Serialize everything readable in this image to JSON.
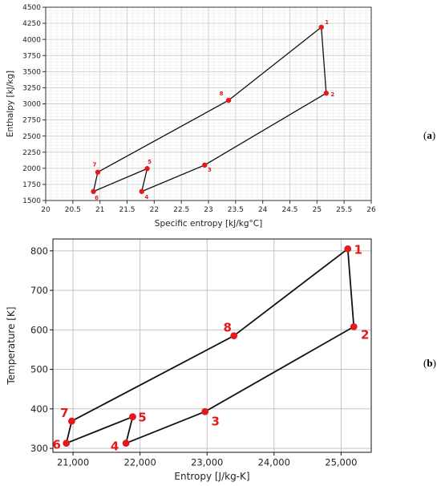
{
  "panels": [
    {
      "tag_open": "(",
      "tag_letter": "a",
      "tag_close": ")"
    },
    {
      "tag_open": "(",
      "tag_letter": "b",
      "tag_close": ")"
    }
  ],
  "chart_data": [
    {
      "type": "line",
      "title": "",
      "xlabel": "Specific entropy [kJ/kg°C]",
      "ylabel": "Enthalpy [kJ/kg]",
      "xlim": [
        20,
        26
      ],
      "ylim": [
        1500,
        4500
      ],
      "xticks": [
        20,
        20.5,
        21,
        21.5,
        22,
        22.5,
        23,
        23.5,
        24,
        24.5,
        25,
        25.5,
        26
      ],
      "xtick_labels": [
        "20",
        "20.5",
        "21",
        "21.5",
        "22",
        "22.5",
        "23",
        "23.5",
        "24",
        "24.5",
        "25",
        "25.5",
        "26"
      ],
      "yticks": [
        1500,
        1750,
        2000,
        2250,
        2500,
        2750,
        3000,
        3250,
        3500,
        3750,
        4000,
        4250,
        4500
      ],
      "ytick_labels": [
        "1500",
        "1750",
        "2000",
        "2250",
        "2500",
        "2750",
        "3000",
        "3250",
        "3500",
        "3750",
        "4000",
        "4250",
        "4500"
      ],
      "grid": "major and minor",
      "points": [
        {
          "label": "1",
          "x": 25.08,
          "y": 4190
        },
        {
          "label": "2",
          "x": 25.17,
          "y": 3165
        },
        {
          "label": "3",
          "x": 22.93,
          "y": 2050
        },
        {
          "label": "4",
          "x": 21.77,
          "y": 1640
        },
        {
          "label": "5",
          "x": 21.87,
          "y": 1995
        },
        {
          "label": "6",
          "x": 20.88,
          "y": 1640
        },
        {
          "label": "7",
          "x": 20.96,
          "y": 1940
        },
        {
          "label": "8",
          "x": 23.37,
          "y": 3055
        }
      ],
      "cycle_order": [
        "1",
        "2",
        "3",
        "4",
        "5",
        "6",
        "7",
        "8",
        "1"
      ],
      "line_color": "#111111",
      "marker_color": "#e3191c"
    },
    {
      "type": "line",
      "title": "",
      "xlabel": "Entropy [J/kg-K]",
      "ylabel": "Temperature [K]",
      "xlim": [
        20700,
        25450
      ],
      "ylim": [
        290,
        830
      ],
      "xticks": [
        21000,
        22000,
        23000,
        24000,
        25000
      ],
      "xtick_labels": [
        "21,000",
        "22,000",
        "23,000",
        "24,000",
        "25,000"
      ],
      "yticks": [
        300,
        400,
        500,
        600,
        700,
        800
      ],
      "ytick_labels": [
        "300",
        "400",
        "500",
        "600",
        "700",
        "800"
      ],
      "grid": "major",
      "points": [
        {
          "label": "1",
          "x": 25100,
          "y": 805
        },
        {
          "label": "2",
          "x": 25190,
          "y": 608
        },
        {
          "label": "3",
          "x": 22970,
          "y": 393
        },
        {
          "label": "4",
          "x": 21790,
          "y": 313
        },
        {
          "label": "5",
          "x": 21890,
          "y": 380
        },
        {
          "label": "6",
          "x": 20900,
          "y": 313
        },
        {
          "label": "7",
          "x": 20980,
          "y": 369
        },
        {
          "label": "8",
          "x": 23400,
          "y": 585
        }
      ],
      "cycle_order": [
        "1",
        "2",
        "3",
        "4",
        "5",
        "6",
        "7",
        "8",
        "1"
      ],
      "line_color": "#111111",
      "marker_color": "#e3191c"
    }
  ]
}
